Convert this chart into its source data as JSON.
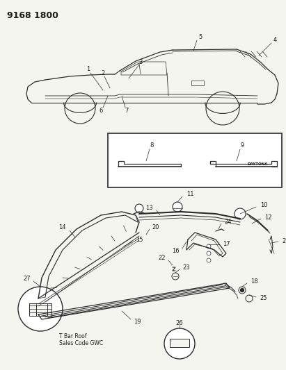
{
  "title_code": "9168 1800",
  "background_color": "#f5f5f0",
  "line_color": "#2a2a2a",
  "text_color": "#1a1a1a",
  "daytona_label": "DAYTONA",
  "t_bar_text": "T Bar Roof\nSales Code GWC",
  "figsize": [
    4.11,
    5.33
  ],
  "dpi": 100
}
